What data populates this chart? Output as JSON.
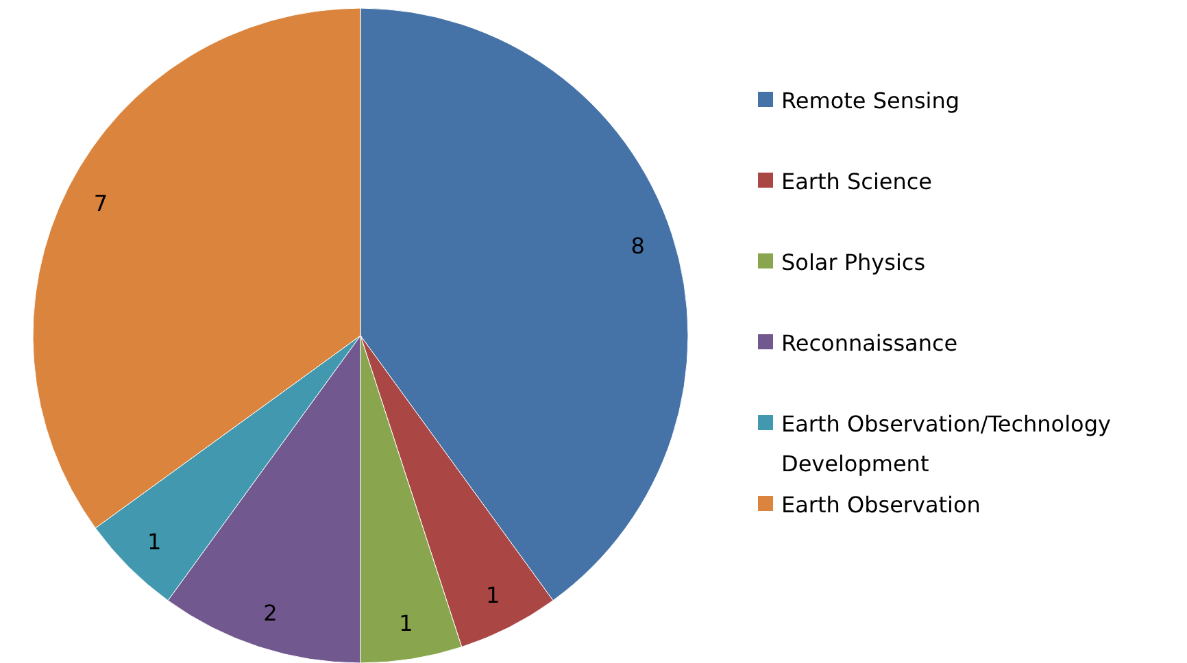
{
  "chart_data": {
    "type": "pie",
    "categories": [
      "Remote Sensing",
      "Earth Science",
      "Solar Physics",
      "Reconnaissance",
      "Earth Observation/Technology Development",
      "Earth Observation"
    ],
    "values": [
      8,
      1,
      1,
      2,
      1,
      7
    ],
    "colors": [
      "#4572a7",
      "#aa4643",
      "#89a54e",
      "#71588f",
      "#4198af",
      "#db843d"
    ],
    "data_labels": true,
    "legend": "right"
  }
}
